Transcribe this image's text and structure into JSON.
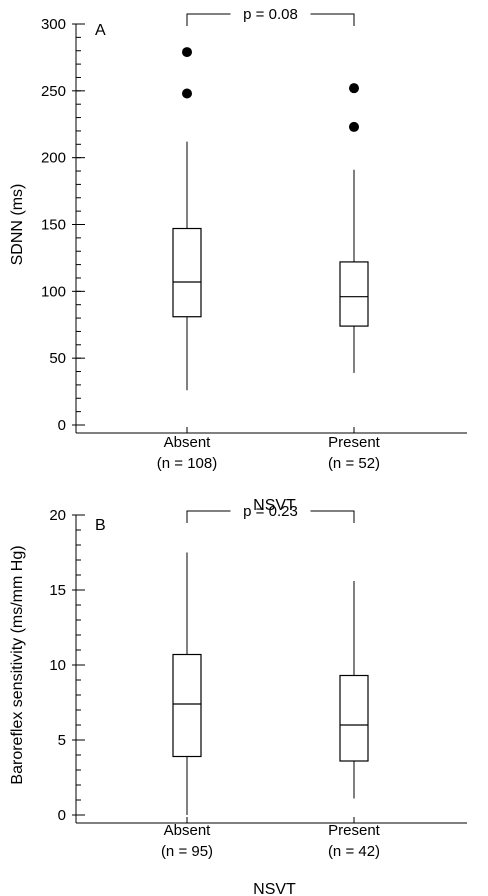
{
  "chart_data": [
    {
      "type": "box",
      "panel_label": "A",
      "ylabel": "SDNN (ms)",
      "xlabel": "NSVT",
      "ylim": [
        0,
        300
      ],
      "yticks": [
        0,
        50,
        100,
        150,
        200,
        250,
        300
      ],
      "annotation": "p = 0.08",
      "groups": [
        {
          "label": "Absent",
          "n_label": "(n = 108)",
          "min": 26,
          "q1": 81,
          "median": 107,
          "q3": 147,
          "max": 212,
          "outliers": [
            248,
            279
          ]
        },
        {
          "label": "Present",
          "n_label": "(n = 52)",
          "min": 39,
          "q1": 74,
          "median": 96,
          "q3": 122,
          "max": 191,
          "outliers": [
            223,
            252
          ]
        }
      ]
    },
    {
      "type": "box",
      "panel_label": "B",
      "ylabel": "Baroreflex sensitivity (ms/mm Hg)",
      "xlabel": "NSVT",
      "ylim": [
        0,
        20
      ],
      "yticks": [
        0,
        5,
        10,
        15,
        20
      ],
      "annotation": "p = 0.23",
      "groups": [
        {
          "label": "Absent",
          "n_label": "(n = 95)",
          "min": 0,
          "q1": 3.9,
          "median": 7.4,
          "q3": 10.7,
          "max": 17.5,
          "outliers": []
        },
        {
          "label": "Present",
          "n_label": "(n = 42)",
          "min": 1.1,
          "q1": 3.6,
          "median": 6.0,
          "q3": 9.3,
          "max": 15.6,
          "outliers": []
        }
      ]
    }
  ]
}
